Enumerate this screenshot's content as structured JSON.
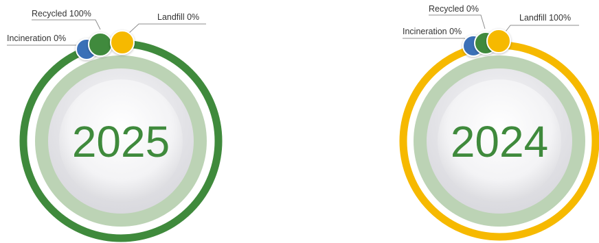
{
  "chart_data": [
    {
      "type": "pie",
      "title": "2025",
      "categories": [
        "Incineration",
        "Recycled",
        "Landfill"
      ],
      "values": [
        0,
        100,
        0
      ],
      "labels": [
        "Incineration 0%",
        "Recycled 100%",
        "Landfill 0%"
      ],
      "colors": [
        "#3b6fb7",
        "#3f8a3c",
        "#f6b900"
      ]
    },
    {
      "type": "pie",
      "title": "2024",
      "categories": [
        "Incineration",
        "Recycled",
        "Landfill"
      ],
      "values": [
        0,
        0,
        100
      ],
      "labels": [
        "Incineration 0%",
        "Recycled 0%",
        "Landfill 100%"
      ],
      "colors": [
        "#3b6fb7",
        "#3f8a3c",
        "#f6b900"
      ]
    }
  ],
  "colors": {
    "leader": "#8c8c8c",
    "inner_ring": "#bcd3b5",
    "face": "#efeff1",
    "year_text": "#3f8a3c"
  }
}
